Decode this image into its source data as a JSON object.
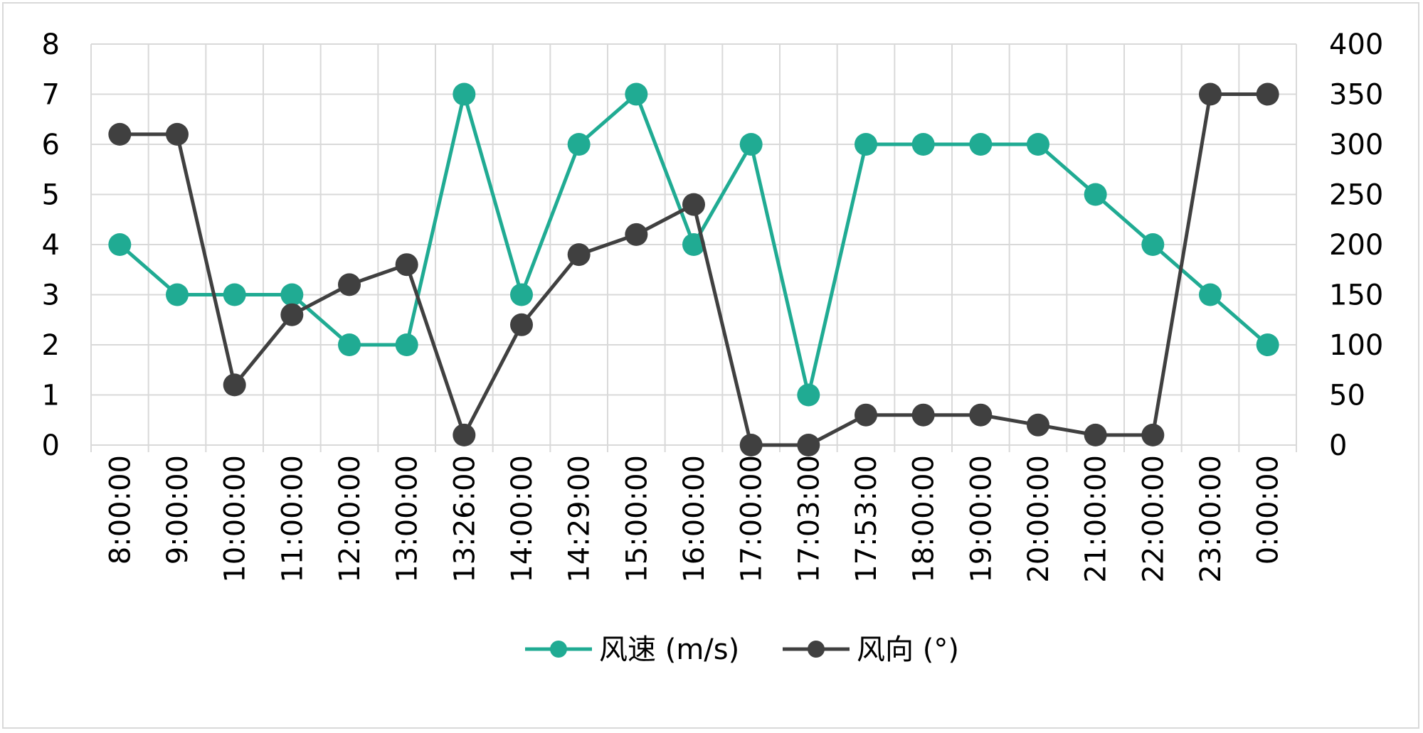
{
  "chart_data": {
    "type": "line",
    "categories": [
      "8:00:00",
      "9:00:00",
      "10:00:00",
      "11:00:00",
      "12:00:00",
      "13:00:00",
      "13:26:00",
      "14:00:00",
      "14:29:00",
      "15:00:00",
      "16:00:00",
      "17:00:00",
      "17:03:00",
      "17:53:00",
      "18:00:00",
      "19:00:00",
      "20:00:00",
      "21:00:00",
      "22:00:00",
      "23:00:00",
      "0:00:00"
    ],
    "series": [
      {
        "name": "风速 (m/s)",
        "axis": "left",
        "color": "#20ab93",
        "values": [
          4,
          3,
          3,
          3,
          2,
          2,
          7,
          3,
          6,
          7,
          4,
          6,
          1,
          6,
          6,
          6,
          6,
          5,
          4,
          3,
          2
        ]
      },
      {
        "name": "风向 (°)",
        "axis": "right",
        "color": "#404040",
        "values": [
          310,
          310,
          60,
          130,
          160,
          180,
          10,
          120,
          190,
          210,
          240,
          0,
          0,
          30,
          30,
          30,
          20,
          10,
          10,
          350,
          350
        ]
      }
    ],
    "ylim": [
      0,
      8
    ],
    "yticks": [
      "0",
      "1",
      "2",
      "3",
      "4",
      "5",
      "6",
      "7",
      "8"
    ],
    "y2lim": [
      0,
      400
    ],
    "y2ticks": [
      "0",
      "50",
      "100",
      "150",
      "200",
      "250",
      "300",
      "350",
      "400"
    ],
    "grid": true,
    "legend_position": "bottom"
  }
}
